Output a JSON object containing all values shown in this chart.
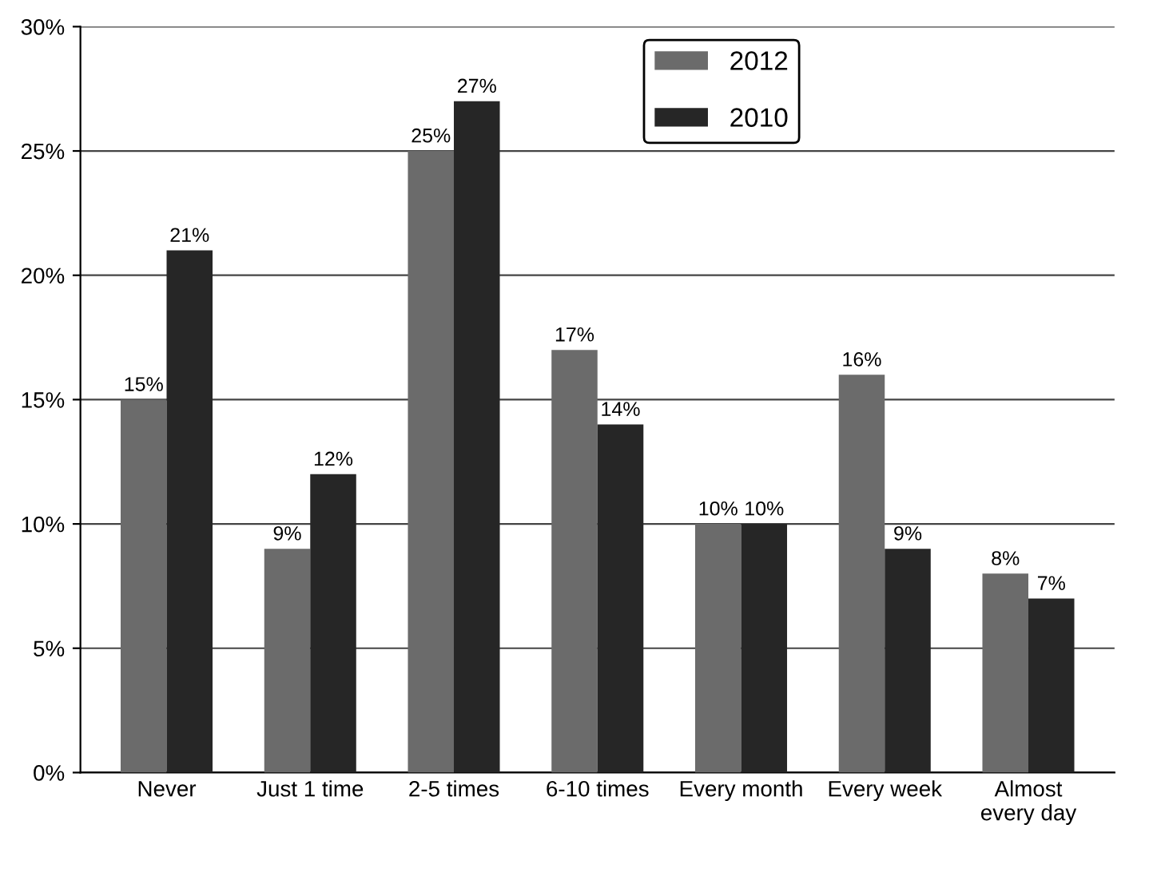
{
  "chart_data": {
    "type": "bar",
    "categories": [
      "Never",
      "Just 1 time",
      "2-5 times",
      "6-10 times",
      "Every month",
      "Every week",
      "Almost\nevery day"
    ],
    "series": [
      {
        "name": "2012",
        "color": "#6b6b6b",
        "values": [
          15,
          9,
          25,
          17,
          10,
          16,
          8
        ],
        "value_labels": [
          "15%",
          "9%",
          "25%",
          "17%",
          "10%",
          "16%",
          "8%"
        ]
      },
      {
        "name": "2010",
        "color": "#262626",
        "values": [
          21,
          12,
          27,
          14,
          10,
          9,
          7
        ],
        "value_labels": [
          "21%",
          "12%",
          "27%",
          "14%",
          "10%",
          "9%",
          "7%"
        ]
      }
    ],
    "ylim": [
      0,
      30
    ],
    "yticks": [
      {
        "value": 0,
        "label": "0%"
      },
      {
        "value": 5,
        "label": "5%"
      },
      {
        "value": 10,
        "label": "10%"
      },
      {
        "value": 15,
        "label": "15%"
      },
      {
        "value": 20,
        "label": "20%"
      },
      {
        "value": 25,
        "label": "25%"
      },
      {
        "value": 30,
        "label": "30%"
      }
    ],
    "grid": "y",
    "legend": "top"
  }
}
